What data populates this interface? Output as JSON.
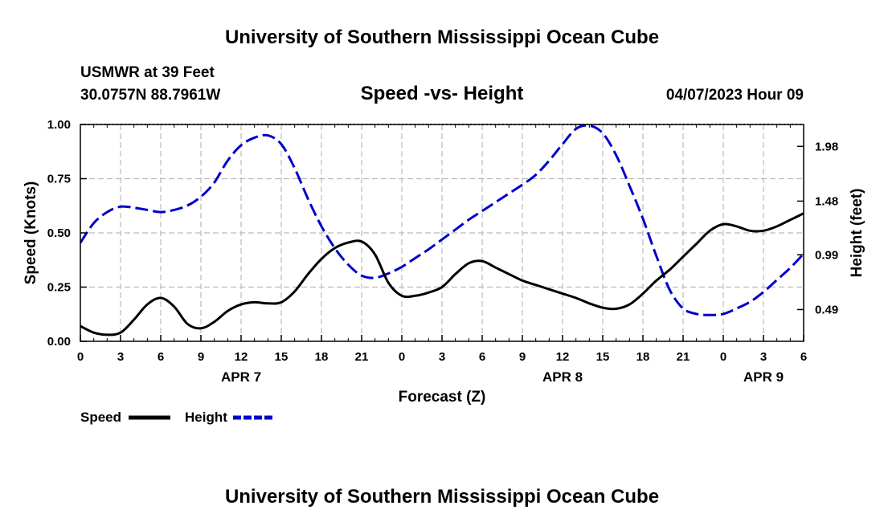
{
  "page": {
    "title_top": "University of Southern Mississippi Ocean Cube",
    "title_bottom": "University of Southern Mississippi Ocean Cube",
    "station": "USMWR at 39 Feet",
    "coords": "30.0757N  88.7961W",
    "date": "04/07/2023 Hour 09"
  },
  "chart_data": {
    "type": "line",
    "title": "Speed -vs- Height",
    "xlabel": "Forecast (Z)",
    "ylabel": "Speed (Knots)",
    "y2label": "Height (feet)",
    "x_unit": "hours since 00Z Apr 7",
    "xlim": [
      0,
      54
    ],
    "ylim": [
      0,
      1
    ],
    "y2lim": [
      0.2,
      2.18
    ],
    "x_ticks": [
      0,
      3,
      6,
      9,
      12,
      15,
      18,
      21,
      24,
      27,
      30,
      33,
      36,
      39,
      42,
      45,
      48,
      51,
      54
    ],
    "x_tick_labels": [
      "0",
      "3",
      "6",
      "9",
      "12",
      "15",
      "18",
      "21",
      "0",
      "3",
      "6",
      "9",
      "12",
      "15",
      "18",
      "21",
      "0",
      "3",
      "6"
    ],
    "day_labels": [
      {
        "x": 12,
        "label": "APR 7"
      },
      {
        "x": 36,
        "label": "APR 8"
      },
      {
        "x": 51,
        "label": "APR 9"
      }
    ],
    "y_ticks": [
      0,
      0.25,
      0.5,
      0.75,
      1.0
    ],
    "y_tick_labels": [
      "0.00",
      "0.25",
      "0.50",
      "0.75",
      "1.00"
    ],
    "y2_ticks": [
      0.49,
      0.99,
      1.48,
      1.98
    ],
    "y2_tick_labels": [
      "0.49",
      "0.99",
      "1.48",
      "1.98"
    ],
    "legend": [
      {
        "name": "Speed",
        "color": "#000000"
      },
      {
        "name": "Height",
        "color": "#0000cc"
      }
    ],
    "series": [
      {
        "name": "Speed",
        "axis": "left",
        "color": "#000000",
        "dash": "solid",
        "x": [
          0,
          1,
          2,
          3,
          4,
          5,
          6,
          7,
          8,
          9,
          10,
          11,
          12,
          13,
          14,
          15,
          16,
          17,
          18,
          19,
          20,
          21,
          22,
          23,
          24,
          25,
          26,
          27,
          28,
          29,
          30,
          31,
          32,
          33,
          34,
          35,
          36,
          37,
          38,
          39,
          40,
          41,
          42,
          43,
          44,
          45,
          46,
          47,
          48,
          49,
          50,
          51,
          52,
          53,
          54
        ],
        "values": [
          0.07,
          0.04,
          0.03,
          0.04,
          0.1,
          0.17,
          0.2,
          0.16,
          0.08,
          0.06,
          0.09,
          0.14,
          0.17,
          0.18,
          0.175,
          0.18,
          0.23,
          0.31,
          0.38,
          0.43,
          0.455,
          0.46,
          0.4,
          0.27,
          0.21,
          0.21,
          0.225,
          0.25,
          0.31,
          0.36,
          0.37,
          0.34,
          0.31,
          0.28,
          0.26,
          0.24,
          0.22,
          0.2,
          0.175,
          0.155,
          0.15,
          0.17,
          0.22,
          0.28,
          0.33,
          0.39,
          0.45,
          0.51,
          0.54,
          0.53,
          0.51,
          0.51,
          0.53,
          0.56,
          0.59
        ]
      },
      {
        "name": "Height",
        "axis": "right",
        "color": "#0000cc",
        "dash": "dashed",
        "x": [
          0,
          1,
          2,
          3,
          4,
          5,
          6,
          7,
          8,
          9,
          10,
          11,
          12,
          13,
          14,
          15,
          16,
          17,
          18,
          19,
          20,
          21,
          22,
          23,
          24,
          25,
          26,
          27,
          28,
          29,
          30,
          31,
          32,
          33,
          34,
          35,
          36,
          37,
          38,
          39,
          40,
          41,
          42,
          43,
          44,
          45,
          46,
          47,
          48,
          49,
          50,
          51,
          52,
          53,
          54
        ],
        "values": [
          1.1,
          1.28,
          1.38,
          1.43,
          1.42,
          1.4,
          1.38,
          1.4,
          1.44,
          1.52,
          1.65,
          1.85,
          1.99,
          2.06,
          2.08,
          2.0,
          1.78,
          1.5,
          1.25,
          1.05,
          0.9,
          0.8,
          0.78,
          0.82,
          0.88,
          0.96,
          1.04,
          1.13,
          1.22,
          1.31,
          1.39,
          1.47,
          1.55,
          1.63,
          1.72,
          1.85,
          2.0,
          2.14,
          2.17,
          2.1,
          1.9,
          1.62,
          1.32,
          0.98,
          0.67,
          0.5,
          0.45,
          0.44,
          0.45,
          0.5,
          0.56,
          0.65,
          0.76,
          0.87,
          1.0
        ]
      }
    ]
  }
}
